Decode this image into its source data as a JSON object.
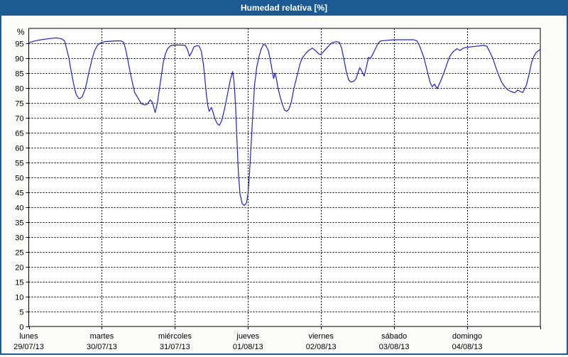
{
  "window": {
    "title": "Humedad relativa [%]"
  },
  "colors": {
    "titlebar_bg": "#1c5a94",
    "frame": "#1c5a94",
    "titlebar_text": "#ffffff",
    "panel_bg": "#fcfdf8",
    "plot_bg": "#ffffff",
    "grid": "#000000",
    "axis": "#000000",
    "line": "#2121cd",
    "text": "#000000"
  },
  "chart_data": {
    "type": "line",
    "title": "Humedad relativa [%]",
    "xlabel": "",
    "ylabel": "%",
    "ylim": [
      0,
      100
    ],
    "y_ticks": [
      0,
      5,
      10,
      15,
      20,
      25,
      30,
      35,
      40,
      45,
      50,
      55,
      60,
      65,
      70,
      75,
      80,
      85,
      90,
      95
    ],
    "grid": true,
    "legend_position": "none",
    "x_days": [
      {
        "name": "lunes",
        "date": "29/07/13"
      },
      {
        "name": "martes",
        "date": "30/07/13"
      },
      {
        "name": "miércoles",
        "date": "31/07/13"
      },
      {
        "name": "jueves",
        "date": "01/08/13"
      },
      {
        "name": "viernes",
        "date": "02/08/13"
      },
      {
        "name": "sábado",
        "date": "03/08/13"
      },
      {
        "name": "domingo",
        "date": "04/08/13"
      }
    ],
    "series": [
      {
        "name": "Humedad relativa [%]",
        "color": "#2121cd",
        "x_unit": "days_since_2013-07-29",
        "points": [
          [
            0.0,
            95.2
          ],
          [
            0.1,
            95.9
          ],
          [
            0.2,
            96.3
          ],
          [
            0.29,
            96.6
          ],
          [
            0.38,
            96.8
          ],
          [
            0.45,
            96.5
          ],
          [
            0.49,
            95.8
          ],
          [
            0.52,
            93.0
          ],
          [
            0.55,
            90.0
          ],
          [
            0.57,
            87.0
          ],
          [
            0.6,
            83.0
          ],
          [
            0.63,
            79.5
          ],
          [
            0.65,
            77.8
          ],
          [
            0.68,
            76.6
          ],
          [
            0.7,
            76.5
          ],
          [
            0.73,
            77.0
          ],
          [
            0.77,
            79.5
          ],
          [
            0.8,
            82.5
          ],
          [
            0.82,
            85.0
          ],
          [
            0.85,
            88.0
          ],
          [
            0.87,
            90.0
          ],
          [
            0.9,
            92.5
          ],
          [
            0.94,
            94.3
          ],
          [
            0.97,
            94.9
          ],
          [
            1.0,
            95.3
          ],
          [
            1.05,
            95.6
          ],
          [
            1.12,
            95.7
          ],
          [
            1.2,
            95.8
          ],
          [
            1.26,
            95.8
          ],
          [
            1.3,
            95.3
          ],
          [
            1.33,
            92.5
          ],
          [
            1.35,
            90.0
          ],
          [
            1.39,
            85.0
          ],
          [
            1.42,
            81.5
          ],
          [
            1.45,
            78.5
          ],
          [
            1.5,
            76.4
          ],
          [
            1.54,
            74.8
          ],
          [
            1.58,
            74.3
          ],
          [
            1.62,
            74.5
          ],
          [
            1.66,
            76.0
          ],
          [
            1.69,
            75.3
          ],
          [
            1.73,
            71.8
          ],
          [
            1.76,
            75.0
          ],
          [
            1.79,
            80.0
          ],
          [
            1.82,
            85.0
          ],
          [
            1.84,
            88.5
          ],
          [
            1.87,
            91.5
          ],
          [
            1.9,
            93.2
          ],
          [
            1.94,
            94.2
          ],
          [
            2.0,
            94.4
          ],
          [
            2.08,
            94.4
          ],
          [
            2.14,
            94.3
          ],
          [
            2.17,
            93.0
          ],
          [
            2.2,
            90.7
          ],
          [
            2.23,
            92.0
          ],
          [
            2.26,
            93.8
          ],
          [
            2.3,
            94.2
          ],
          [
            2.33,
            94.1
          ],
          [
            2.36,
            92.5
          ],
          [
            2.39,
            88.0
          ],
          [
            2.41,
            83.0
          ],
          [
            2.43,
            78.0
          ],
          [
            2.45,
            74.0
          ],
          [
            2.47,
            72.2
          ],
          [
            2.5,
            73.5
          ],
          [
            2.52,
            72.0
          ],
          [
            2.55,
            69.5
          ],
          [
            2.58,
            68.0
          ],
          [
            2.61,
            67.5
          ],
          [
            2.64,
            69.0
          ],
          [
            2.68,
            73.0
          ],
          [
            2.72,
            78.0
          ],
          [
            2.76,
            83.0
          ],
          [
            2.79,
            85.5
          ],
          [
            2.81,
            82.0
          ],
          [
            2.83,
            74.0
          ],
          [
            2.85,
            62.0
          ],
          [
            2.87,
            51.0
          ],
          [
            2.89,
            44.5
          ],
          [
            2.92,
            41.2
          ],
          [
            2.95,
            40.6
          ],
          [
            2.98,
            41.5
          ],
          [
            3.0,
            44.5
          ],
          [
            3.02,
            51.0
          ],
          [
            3.04,
            60.0
          ],
          [
            3.07,
            73.0
          ],
          [
            3.09,
            81.0
          ],
          [
            3.12,
            87.0
          ],
          [
            3.15,
            90.5
          ],
          [
            3.18,
            93.0
          ],
          [
            3.21,
            94.6
          ],
          [
            3.24,
            94.4
          ],
          [
            3.28,
            92.5
          ],
          [
            3.3,
            90.0
          ],
          [
            3.33,
            86.0
          ],
          [
            3.35,
            83.2
          ],
          [
            3.37,
            85.0
          ],
          [
            3.39,
            83.0
          ],
          [
            3.41,
            80.0
          ],
          [
            3.44,
            77.0
          ],
          [
            3.47,
            74.5
          ],
          [
            3.5,
            72.6
          ],
          [
            3.53,
            72.2
          ],
          [
            3.56,
            72.9
          ],
          [
            3.59,
            75.0
          ],
          [
            3.63,
            80.0
          ],
          [
            3.68,
            85.0
          ],
          [
            3.71,
            88.0
          ],
          [
            3.74,
            90.0
          ],
          [
            3.79,
            91.6
          ],
          [
            3.83,
            92.6
          ],
          [
            3.88,
            93.4
          ],
          [
            3.92,
            92.6
          ],
          [
            3.97,
            91.4
          ],
          [
            4.0,
            91.3
          ],
          [
            4.05,
            92.7
          ],
          [
            4.1,
            94.0
          ],
          [
            4.15,
            95.2
          ],
          [
            4.2,
            95.5
          ],
          [
            4.25,
            95.4
          ],
          [
            4.28,
            93.5
          ],
          [
            4.31,
            90.0
          ],
          [
            4.35,
            85.0
          ],
          [
            4.38,
            82.6
          ],
          [
            4.41,
            82.0
          ],
          [
            4.45,
            82.3
          ],
          [
            4.48,
            83.2
          ],
          [
            4.51,
            85.5
          ],
          [
            4.53,
            86.8
          ],
          [
            4.56,
            85.5
          ],
          [
            4.59,
            84.0
          ],
          [
            4.62,
            87.0
          ],
          [
            4.65,
            90.3
          ],
          [
            4.67,
            89.8
          ],
          [
            4.7,
            91.0
          ],
          [
            4.74,
            93.0
          ],
          [
            4.78,
            95.0
          ],
          [
            4.82,
            95.8
          ],
          [
            4.9,
            96.0
          ],
          [
            5.0,
            96.2
          ],
          [
            5.1,
            96.2
          ],
          [
            5.2,
            96.2
          ],
          [
            5.27,
            96.2
          ],
          [
            5.31,
            95.8
          ],
          [
            5.35,
            94.0
          ],
          [
            5.41,
            90.0
          ],
          [
            5.46,
            85.0
          ],
          [
            5.49,
            82.0
          ],
          [
            5.52,
            80.4
          ],
          [
            5.55,
            81.3
          ],
          [
            5.57,
            80.6
          ],
          [
            5.59,
            79.8
          ],
          [
            5.63,
            82.0
          ],
          [
            5.68,
            85.0
          ],
          [
            5.72,
            88.0
          ],
          [
            5.76,
            90.6
          ],
          [
            5.8,
            92.0
          ],
          [
            5.86,
            93.2
          ],
          [
            5.9,
            92.6
          ],
          [
            5.94,
            93.3
          ],
          [
            5.98,
            93.6
          ],
          [
            6.05,
            93.8
          ],
          [
            6.12,
            94.0
          ],
          [
            6.19,
            94.2
          ],
          [
            6.23,
            94.3
          ],
          [
            6.27,
            94.0
          ],
          [
            6.31,
            92.0
          ],
          [
            6.35,
            90.0
          ],
          [
            6.39,
            87.0
          ],
          [
            6.42,
            85.0
          ],
          [
            6.47,
            82.0
          ],
          [
            6.51,
            80.5
          ],
          [
            6.56,
            79.3
          ],
          [
            6.6,
            78.8
          ],
          [
            6.65,
            78.4
          ],
          [
            6.69,
            79.3
          ],
          [
            6.73,
            78.8
          ],
          [
            6.76,
            78.5
          ],
          [
            6.81,
            81.0
          ],
          [
            6.85,
            85.0
          ],
          [
            6.88,
            88.5
          ],
          [
            6.91,
            90.5
          ],
          [
            6.94,
            91.8
          ],
          [
            6.97,
            92.4
          ],
          [
            7.0,
            93.0
          ]
        ]
      }
    ]
  }
}
